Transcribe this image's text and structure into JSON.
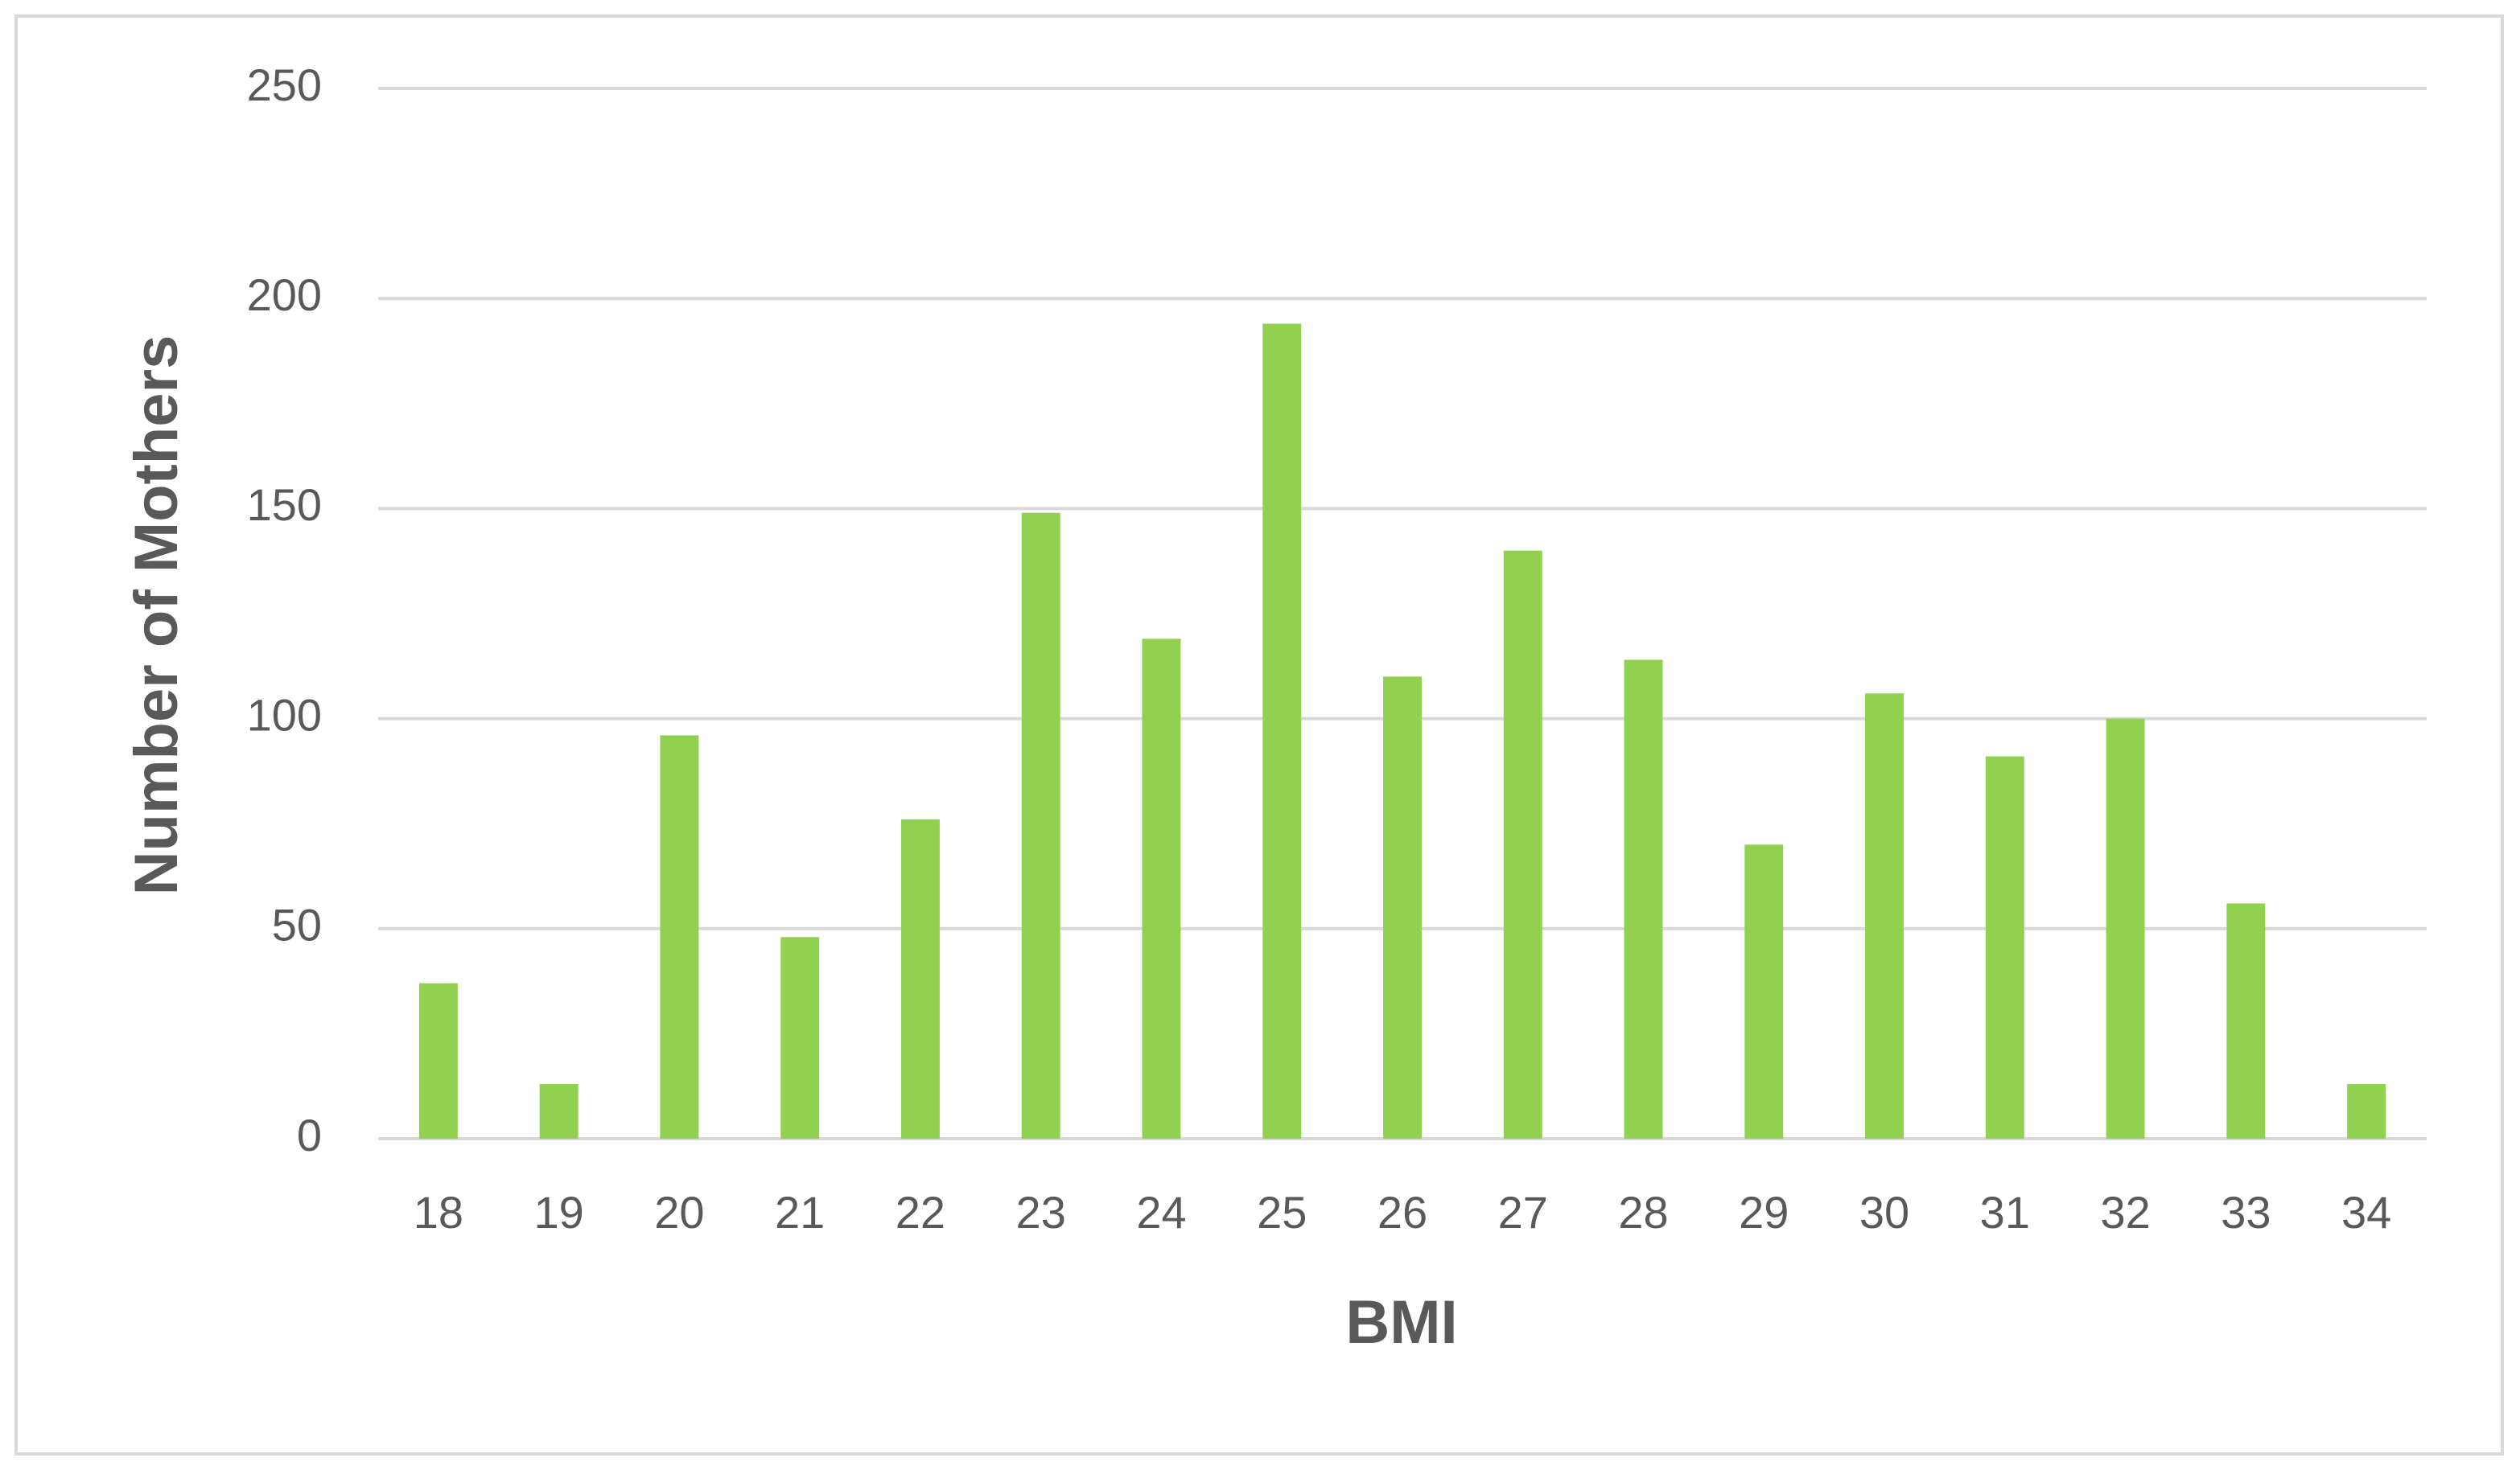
{
  "chart_data": {
    "type": "bar",
    "x_label": "BMI",
    "y_label": "Number of Mothers",
    "categories": [
      "18",
      "19",
      "20",
      "21",
      "22",
      "23",
      "24",
      "25",
      "26",
      "27",
      "28",
      "29",
      "30",
      "31",
      "32",
      "33",
      "34"
    ],
    "values": [
      37,
      13,
      96,
      48,
      76,
      149,
      119,
      194,
      110,
      140,
      114,
      70,
      106,
      91,
      100,
      56,
      13
    ],
    "color": "#92d050",
    "ylim": [
      0,
      250
    ],
    "yticks": [
      0,
      50,
      100,
      150,
      200,
      250
    ],
    "grid": true
  }
}
